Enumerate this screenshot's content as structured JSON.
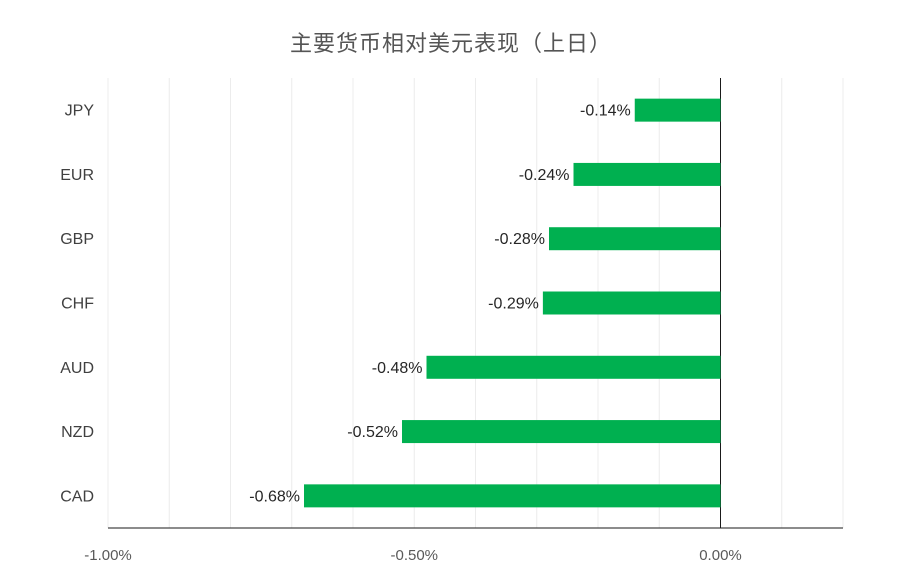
{
  "chart_data": {
    "type": "bar",
    "orientation": "horizontal",
    "title": "主要货币相对美元表现（上日）",
    "xlabel": "",
    "ylabel": "",
    "categories": [
      "JPY",
      "EUR",
      "GBP",
      "CHF",
      "AUD",
      "NZD",
      "CAD"
    ],
    "values": [
      -0.14,
      -0.24,
      -0.28,
      -0.29,
      -0.48,
      -0.52,
      -0.68
    ],
    "data_labels": [
      "-0.14%",
      "-0.24%",
      "-0.28%",
      "-0.29%",
      "-0.48%",
      "-0.52%",
      "-0.68%"
    ],
    "xlim": [
      -1.0,
      0.2
    ],
    "x_ticks": [
      -1.0,
      -0.5,
      0.0
    ],
    "x_tick_labels": [
      "-1.00%",
      "-0.50%",
      "0.00%"
    ],
    "grid_step": 0.1,
    "grid": true,
    "legend": "none",
    "bar_color": "#00b050"
  }
}
